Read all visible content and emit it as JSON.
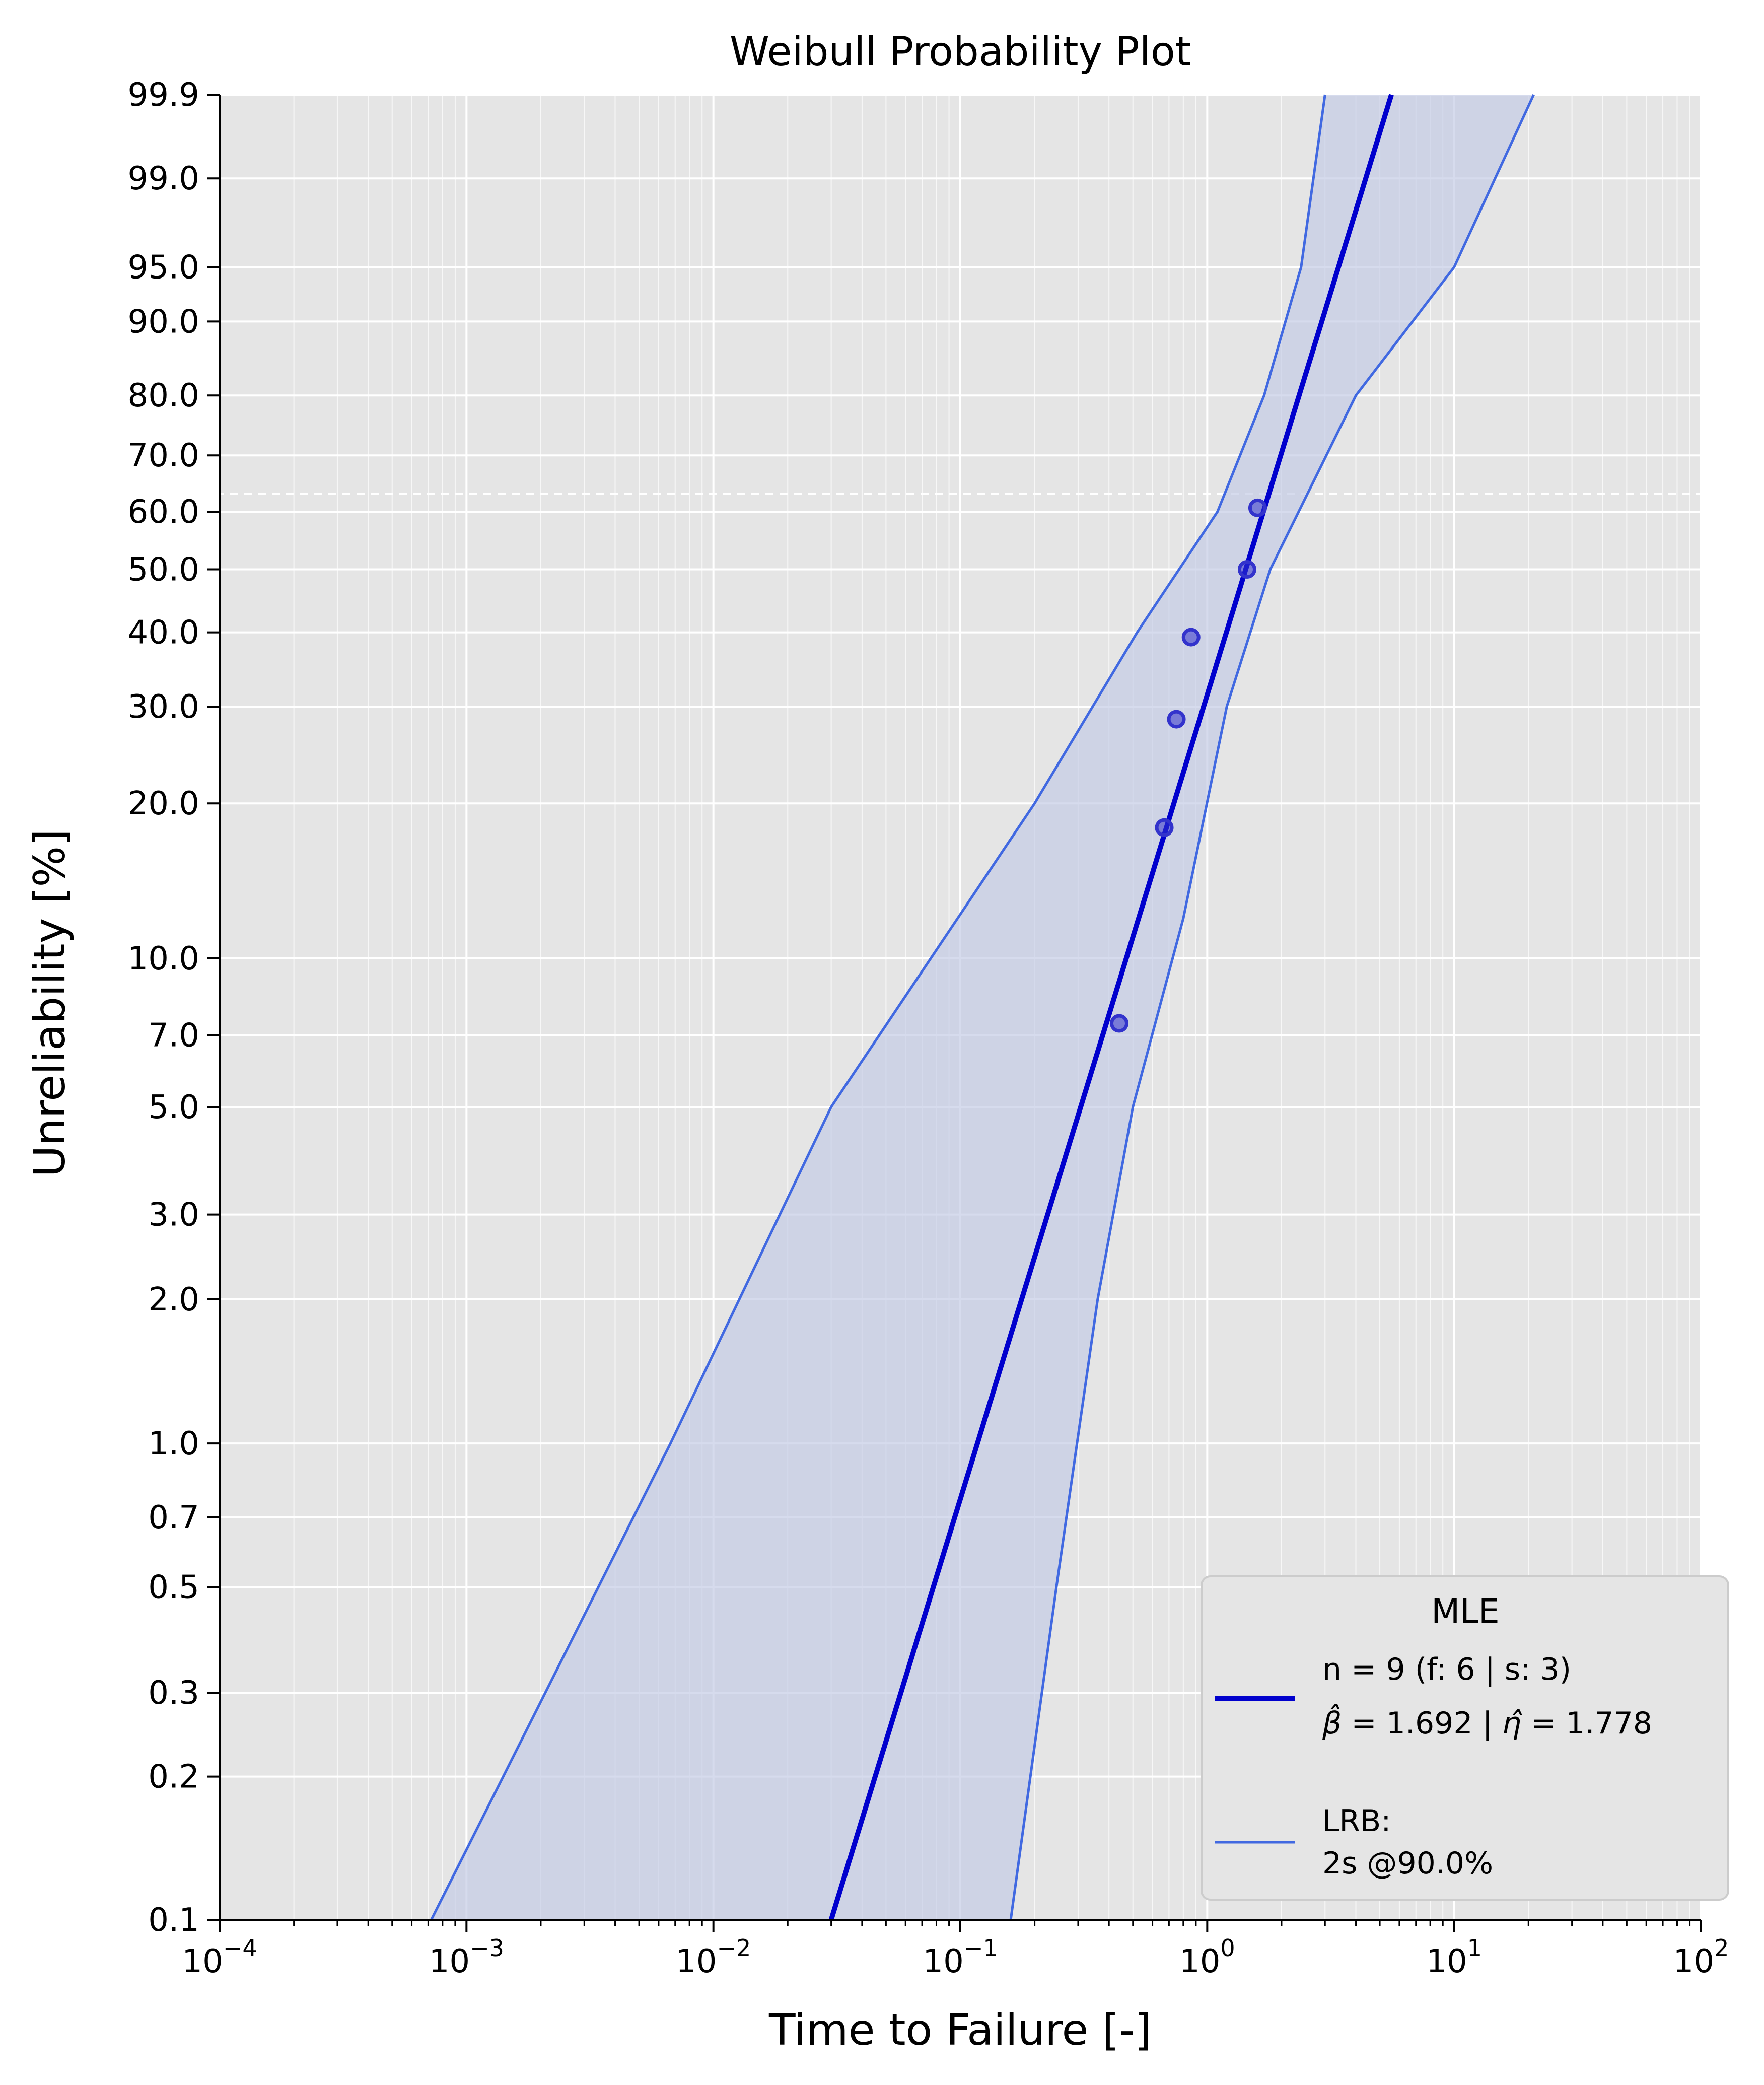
{
  "chart_data": {
    "type": "scatter",
    "title": "Weibull Probability Plot",
    "xlabel": "Time to Failure [-]",
    "ylabel": "Unreliability [%]",
    "x_scale": "log",
    "y_scale": "weibull",
    "xlim": [
      0.0001,
      100
    ],
    "ylim": [
      0.1,
      99.9
    ],
    "grid": true,
    "x_ticks": [
      {
        "value": 0.0001,
        "base": "10",
        "exp": "−4"
      },
      {
        "value": 0.001,
        "base": "10",
        "exp": "−3"
      },
      {
        "value": 0.01,
        "base": "10",
        "exp": "−2"
      },
      {
        "value": 0.1,
        "base": "10",
        "exp": "−1"
      },
      {
        "value": 1,
        "base": "10",
        "exp": "0"
      },
      {
        "value": 10,
        "base": "10",
        "exp": "1"
      },
      {
        "value": 100,
        "base": "10",
        "exp": "2"
      }
    ],
    "y_ticks": [
      {
        "value": 0.1,
        "label": "0.1"
      },
      {
        "value": 0.2,
        "label": "0.2"
      },
      {
        "value": 0.3,
        "label": "0.3"
      },
      {
        "value": 0.5,
        "label": "0.5"
      },
      {
        "value": 0.7,
        "label": "0.7"
      },
      {
        "value": 1.0,
        "label": "1.0"
      },
      {
        "value": 2.0,
        "label": "2.0"
      },
      {
        "value": 3.0,
        "label": "3.0"
      },
      {
        "value": 5.0,
        "label": "5.0"
      },
      {
        "value": 7.0,
        "label": "7.0"
      },
      {
        "value": 10.0,
        "label": "10.0"
      },
      {
        "value": 20.0,
        "label": "20.0"
      },
      {
        "value": 30.0,
        "label": "30.0"
      },
      {
        "value": 40.0,
        "label": "40.0"
      },
      {
        "value": 50.0,
        "label": "50.0"
      },
      {
        "value": 60.0,
        "label": "60.0"
      },
      {
        "value": 70.0,
        "label": "70.0"
      },
      {
        "value": 80.0,
        "label": "80.0"
      },
      {
        "value": 90.0,
        "label": "90.0"
      },
      {
        "value": 95.0,
        "label": "95.0"
      },
      {
        "value": 99.0,
        "label": "99.0"
      },
      {
        "value": 99.9,
        "label": "99.9"
      }
    ],
    "reference_line_y": 63.2,
    "points": [
      {
        "x": 0.44,
        "y": 7.4
      },
      {
        "x": 0.67,
        "y": 18.0
      },
      {
        "x": 0.75,
        "y": 28.5
      },
      {
        "x": 0.86,
        "y": 39.3
      },
      {
        "x": 1.45,
        "y": 50.0
      },
      {
        "x": 1.6,
        "y": 60.7
      }
    ],
    "fit": {
      "beta": 1.692,
      "eta": 1.778
    },
    "confidence_bounds": {
      "lower": [
        {
          "x": 0.16,
          "y": 0.1
        },
        {
          "x": 0.245,
          "y": 0.5
        },
        {
          "x": 0.36,
          "y": 2.0
        },
        {
          "x": 0.5,
          "y": 5.0
        },
        {
          "x": 0.8,
          "y": 12.0
        },
        {
          "x": 1.2,
          "y": 30.0
        },
        {
          "x": 1.8,
          "y": 50.0
        },
        {
          "x": 4.0,
          "y": 80.0
        },
        {
          "x": 10.0,
          "y": 95.0
        },
        {
          "x": 21.0,
          "y": 99.9
        }
      ],
      "upper": [
        {
          "x": 0.00072,
          "y": 0.1
        },
        {
          "x": 0.0067,
          "y": 1.0
        },
        {
          "x": 0.03,
          "y": 5.0
        },
        {
          "x": 0.2,
          "y": 20.0
        },
        {
          "x": 0.52,
          "y": 40.0
        },
        {
          "x": 1.1,
          "y": 60.0
        },
        {
          "x": 1.7,
          "y": 80.0
        },
        {
          "x": 2.4,
          "y": 95.0
        },
        {
          "x": 3.0,
          "y": 99.9
        }
      ]
    },
    "colors": {
      "background": "#e5e5e5",
      "grid": "#ffffff",
      "fit_line": "#0000cd",
      "bound_line": "#4169e1",
      "band_fill": "#c5cce5",
      "points": "#3333cc"
    },
    "legend": {
      "placement": "lower-right",
      "title": "MLE",
      "fit_line1": "n = 9 (f: 6 | s: 3)",
      "beta_value": "1.692",
      "eta_value": "1.778",
      "bound_line1": "LRB:",
      "bound_line2": "2s @90.0%"
    }
  }
}
